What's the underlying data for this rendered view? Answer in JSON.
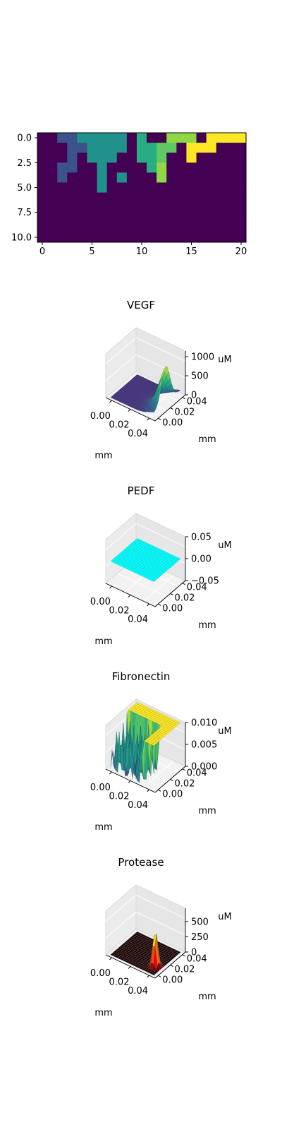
{
  "chart_data": [
    {
      "type": "heatmap",
      "title": "",
      "rows": 11,
      "cols": 21,
      "x_ticks": [
        "0",
        "5",
        "10",
        "15",
        "20"
      ],
      "y_ticks": [
        "0.0",
        "2.5",
        "5.0",
        "7.5",
        "10.0"
      ],
      "xlim": [
        -0.5,
        20.5
      ],
      "ylim": [
        10.5,
        -0.5
      ],
      "colormap": "viridis",
      "colors": {
        "0": "#440154",
        "1": "#3b528b",
        "2": "#21918c",
        "3": "#27ad81",
        "4": "#5ec962",
        "5": "#8fd744",
        "6": "#fde725"
      },
      "grid": [
        [
          0,
          0,
          1,
          1,
          2,
          2,
          2,
          2,
          2,
          0,
          3,
          0,
          0,
          5,
          5,
          5,
          0,
          6,
          6,
          6,
          6
        ],
        [
          0,
          0,
          0,
          1,
          1,
          2,
          2,
          2,
          2,
          0,
          3,
          3,
          4,
          4,
          0,
          6,
          6,
          6,
          0,
          0,
          0
        ],
        [
          0,
          0,
          0,
          1,
          0,
          2,
          2,
          2,
          0,
          0,
          3,
          3,
          4,
          0,
          0,
          6,
          0,
          0,
          0,
          0,
          0
        ],
        [
          0,
          0,
          1,
          1,
          0,
          0,
          2,
          0,
          0,
          0,
          0,
          3,
          5,
          0,
          0,
          0,
          0,
          0,
          0,
          0,
          0
        ],
        [
          0,
          0,
          1,
          0,
          0,
          0,
          2,
          0,
          2,
          0,
          0,
          0,
          5,
          0,
          0,
          0,
          0,
          0,
          0,
          0,
          0
        ],
        [
          0,
          0,
          0,
          0,
          0,
          0,
          2,
          0,
          0,
          0,
          0,
          0,
          0,
          0,
          0,
          0,
          0,
          0,
          0,
          0,
          0
        ],
        [
          0,
          0,
          0,
          0,
          0,
          0,
          0,
          0,
          0,
          0,
          0,
          0,
          0,
          0,
          0,
          0,
          0,
          0,
          0,
          0,
          0
        ],
        [
          0,
          0,
          0,
          0,
          0,
          0,
          0,
          0,
          0,
          0,
          0,
          0,
          0,
          0,
          0,
          0,
          0,
          0,
          0,
          0,
          0
        ],
        [
          0,
          0,
          0,
          0,
          0,
          0,
          0,
          0,
          0,
          0,
          0,
          0,
          0,
          0,
          0,
          0,
          0,
          0,
          0,
          0,
          0
        ],
        [
          0,
          0,
          0,
          0,
          0,
          0,
          0,
          0,
          0,
          0,
          0,
          0,
          0,
          0,
          0,
          0,
          0,
          0,
          0,
          0,
          0
        ],
        [
          0,
          0,
          0,
          0,
          0,
          0,
          0,
          0,
          0,
          0,
          0,
          0,
          0,
          0,
          0,
          0,
          0,
          0,
          0,
          0,
          0
        ]
      ]
    },
    {
      "type": "surface",
      "title": "VEGF",
      "xlabel": "mm",
      "ylabel": "mm",
      "zlabel": "uM",
      "x_ticks": [
        "0.00",
        "0.02",
        "0.04"
      ],
      "y_ticks": [
        "0.00",
        "0.02",
        "0.04"
      ],
      "z_ticks": [
        "0",
        "500",
        "1000"
      ],
      "zlim": [
        0,
        1150
      ],
      "shape": "ridge-peak",
      "peak": 1100,
      "colormap": "viridis"
    },
    {
      "type": "surface",
      "title": "PEDF",
      "xlabel": "mm",
      "ylabel": "mm",
      "zlabel": "uM",
      "x_ticks": [
        "0.00",
        "0.02",
        "0.04"
      ],
      "y_ticks": [
        "0.00",
        "0.02",
        "0.04"
      ],
      "z_ticks": [
        "−0.05",
        "0.00",
        "0.05"
      ],
      "zlim": [
        -0.05,
        0.05
      ],
      "shape": "flat",
      "value": 0,
      "color": "#00ffff"
    },
    {
      "type": "surface",
      "title": "Fibronectin",
      "xlabel": "mm",
      "ylabel": "mm",
      "zlabel": "uM",
      "x_ticks": [
        "0.00",
        "0.02",
        "0.04"
      ],
      "y_ticks": [
        "0.00",
        "0.02",
        "0.04"
      ],
      "z_ticks": [
        "0.000",
        "0.005",
        "0.010"
      ],
      "zlim": [
        0,
        0.01
      ],
      "shape": "plateau-with-trenches",
      "plateau": 0.01,
      "colormap": "viridis"
    },
    {
      "type": "surface",
      "title": "Protease",
      "xlabel": "mm",
      "ylabel": "mm",
      "zlabel": "uM",
      "x_ticks": [
        "0.00",
        "0.02",
        "0.04"
      ],
      "y_ticks": [
        "0.00",
        "0.02",
        "0.04"
      ],
      "z_ticks": [
        "0",
        "250",
        "500"
      ],
      "zlim": [
        0,
        720
      ],
      "shape": "spike",
      "peak": 650,
      "colormap": "hot"
    }
  ]
}
